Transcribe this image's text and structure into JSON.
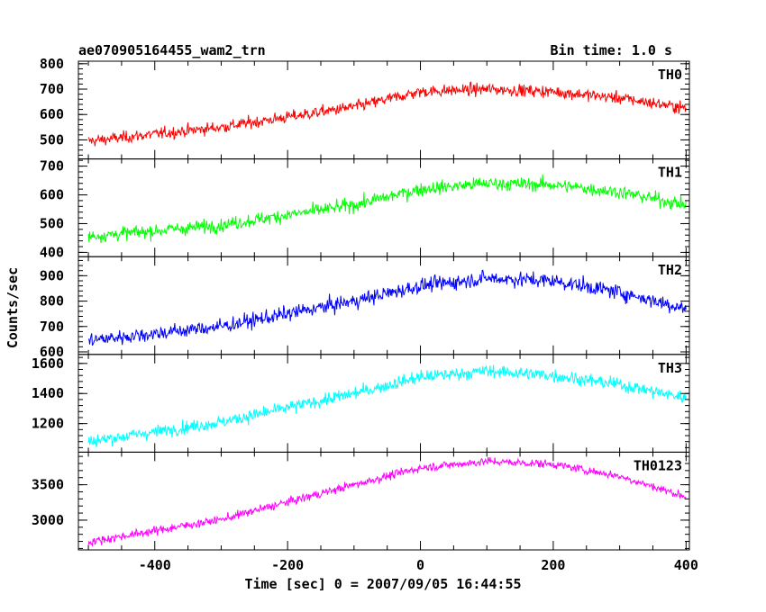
{
  "header": {
    "title": "ae070905164455_wam2_trn",
    "bin_time": "Bin time: 1.0 s"
  },
  "chart_data": {
    "type": "line",
    "title": "ae070905164455_wam2_trn",
    "xlabel": "Time [sec] 0 = 2007/09/05 16:44:55",
    "ylabel": "Counts/sec",
    "xlim": [
      -515,
      405
    ],
    "x_ticks": [
      -400,
      -200,
      0,
      200,
      400
    ],
    "x_tick_labels": [
      "-400",
      "-200",
      "0",
      "200",
      "400"
    ],
    "x_range_data": [
      -500,
      400
    ],
    "grid": false,
    "panels": [
      {
        "name": "TH0",
        "color": "#ff0000",
        "ylim": [
          425,
          810
        ],
        "y_ticks": [
          500,
          600,
          700,
          800
        ],
        "y_tick_labels": [
          "500",
          "600",
          "700",
          "800"
        ],
        "trend_x": [
          -500,
          -300,
          -100,
          0,
          100,
          200,
          300,
          400
        ],
        "trend_y": [
          495,
          550,
          630,
          690,
          700,
          690,
          665,
          625
        ],
        "noise": 30
      },
      {
        "name": "TH1",
        "color": "#00ff00",
        "ylim": [
          385,
          725
        ],
        "y_ticks": [
          400,
          500,
          600,
          700
        ],
        "y_tick_labels": [
          "400",
          "500",
          "600",
          "700"
        ],
        "trend_x": [
          -500,
          -300,
          -100,
          0,
          100,
          200,
          300,
          400
        ],
        "trend_y": [
          455,
          495,
          565,
          620,
          640,
          635,
          610,
          565
        ],
        "noise": 30
      },
      {
        "name": "TH2",
        "color": "#0000ff",
        "ylim": [
          590,
          975
        ],
        "y_ticks": [
          600,
          700,
          800,
          900
        ],
        "y_tick_labels": [
          "600",
          "700",
          "800",
          "900"
        ],
        "trend_x": [
          -500,
          -300,
          -100,
          0,
          100,
          200,
          300,
          400
        ],
        "trend_y": [
          645,
          700,
          800,
          860,
          890,
          880,
          835,
          770
        ],
        "noise": 38
      },
      {
        "name": "TH3",
        "color": "#00ffff",
        "ylim": [
          1010,
          1660
        ],
        "y_ticks": [
          1200,
          1400,
          1600
        ],
        "y_tick_labels": [
          "1200",
          "1400",
          "1600"
        ],
        "trend_x": [
          -500,
          -300,
          -100,
          0,
          100,
          200,
          300,
          400
        ],
        "trend_y": [
          1080,
          1210,
          1400,
          1510,
          1550,
          1520,
          1460,
          1370
        ],
        "noise": 55
      },
      {
        "name": "TH0123",
        "color": "#ff00ff",
        "ylim": [
          2580,
          3960
        ],
        "y_ticks": [
          3000,
          3500
        ],
        "y_tick_labels": [
          "3000",
          "3500"
        ],
        "trend_x": [
          -500,
          -300,
          -100,
          0,
          100,
          200,
          300,
          400
        ],
        "trend_y": [
          2690,
          3010,
          3500,
          3740,
          3830,
          3790,
          3620,
          3330
        ],
        "noise": 75
      }
    ]
  }
}
